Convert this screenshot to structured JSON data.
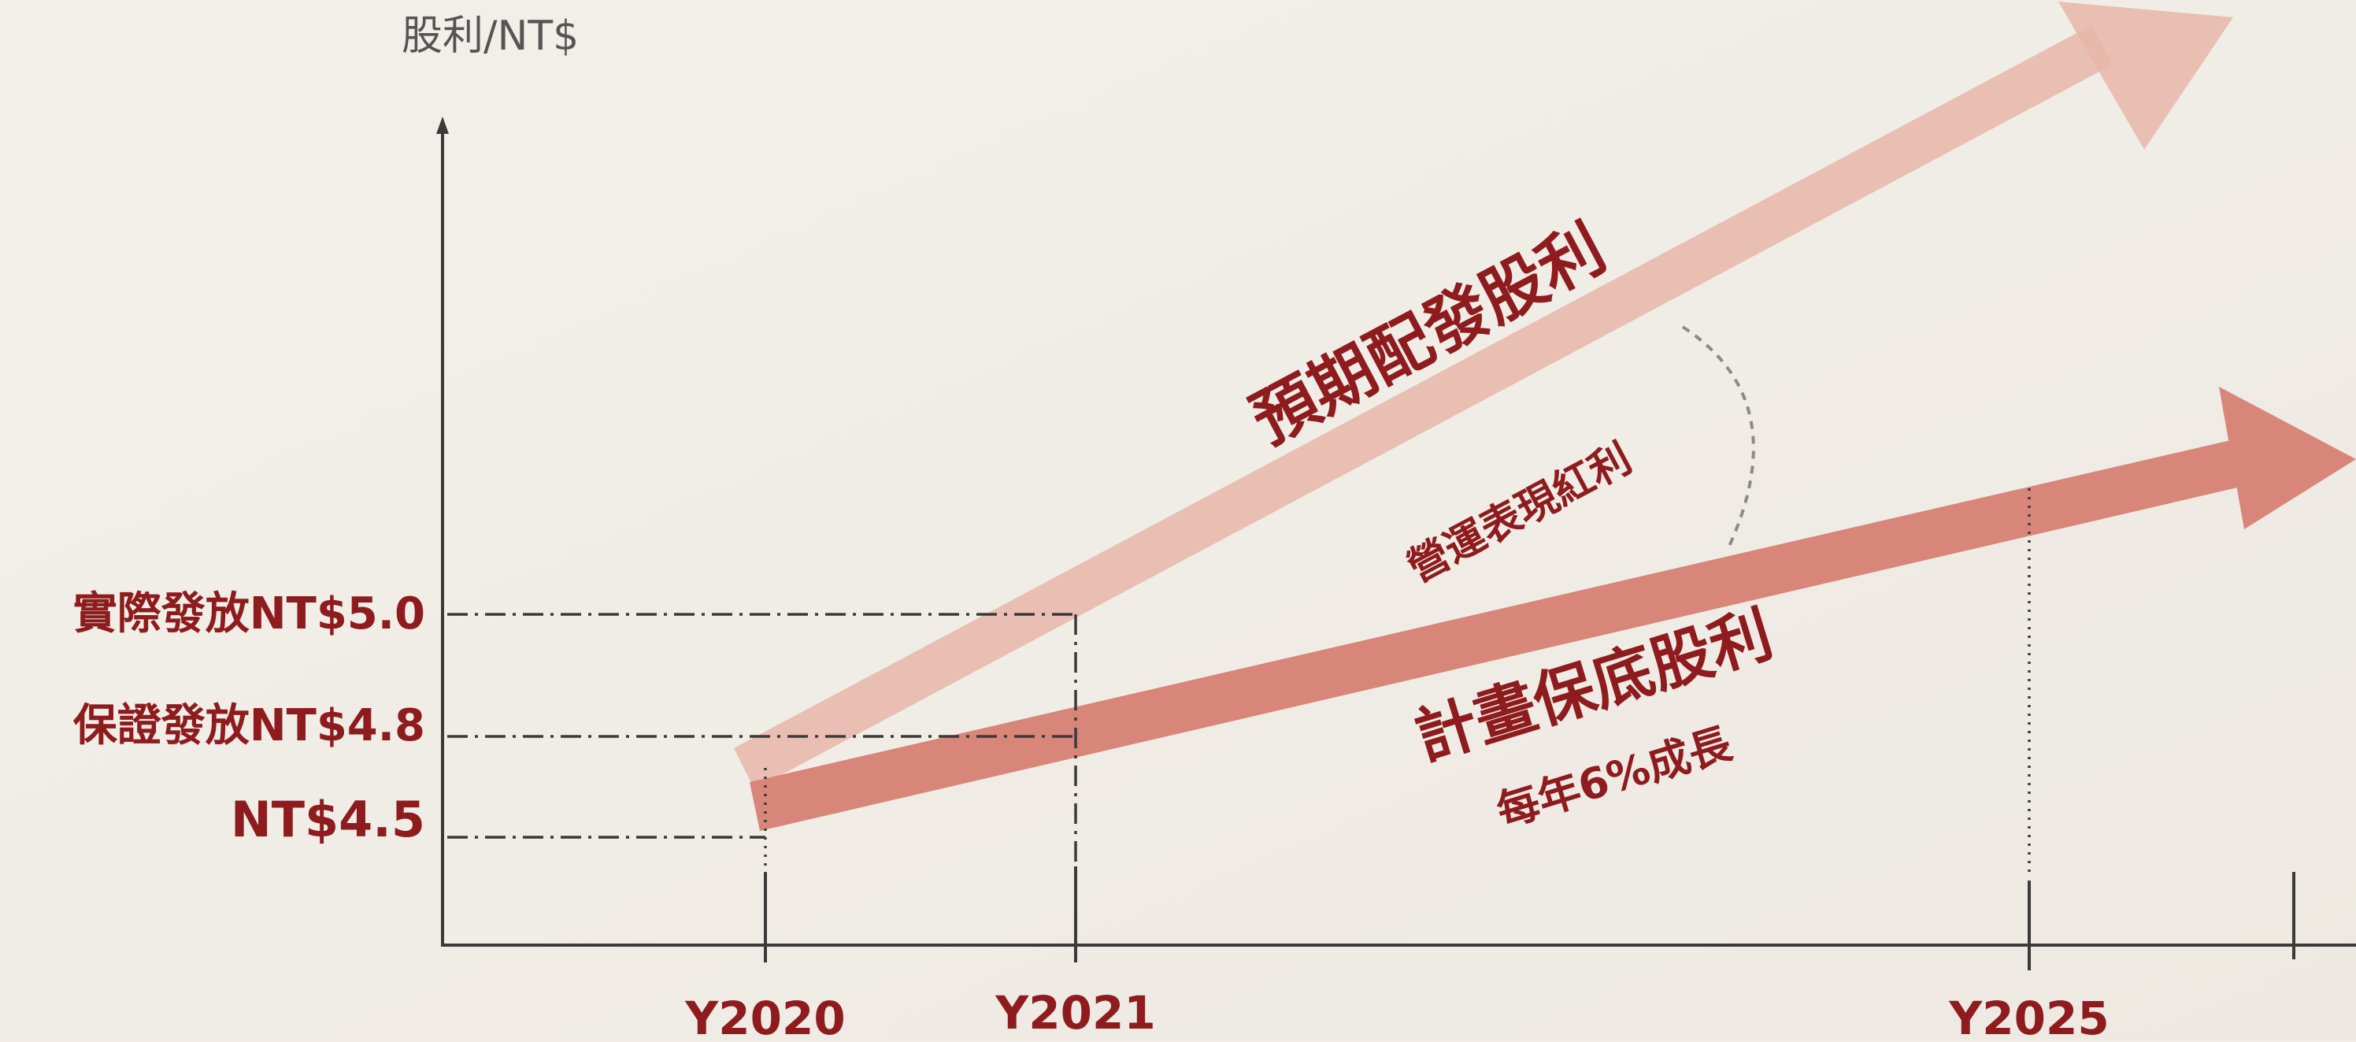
{
  "y_axis_label": "股利/NT$",
  "y_levels": [
    {
      "label": "實際發放NT$5.0"
    },
    {
      "label": "保證發放NT$4.8"
    },
    {
      "label": "NT$4.5"
    }
  ],
  "x_ticks": [
    {
      "label": "Y2020"
    },
    {
      "label": "Y2021"
    },
    {
      "label": "Y2025"
    },
    {
      "label": ""
    }
  ],
  "arrows": {
    "expected_label": "預期配發股利",
    "gap_label": "營運表現紅利",
    "planned_label": "計畫保底股利",
    "planned_sublabel": "每年6%成長"
  },
  "colors": {
    "background": "#f0ece5",
    "text_red": "#8e1b1d",
    "axis": "#3c3c3c",
    "arrow_expected": "#e8b3a9",
    "arrow_planned": "#d98a7d"
  }
}
